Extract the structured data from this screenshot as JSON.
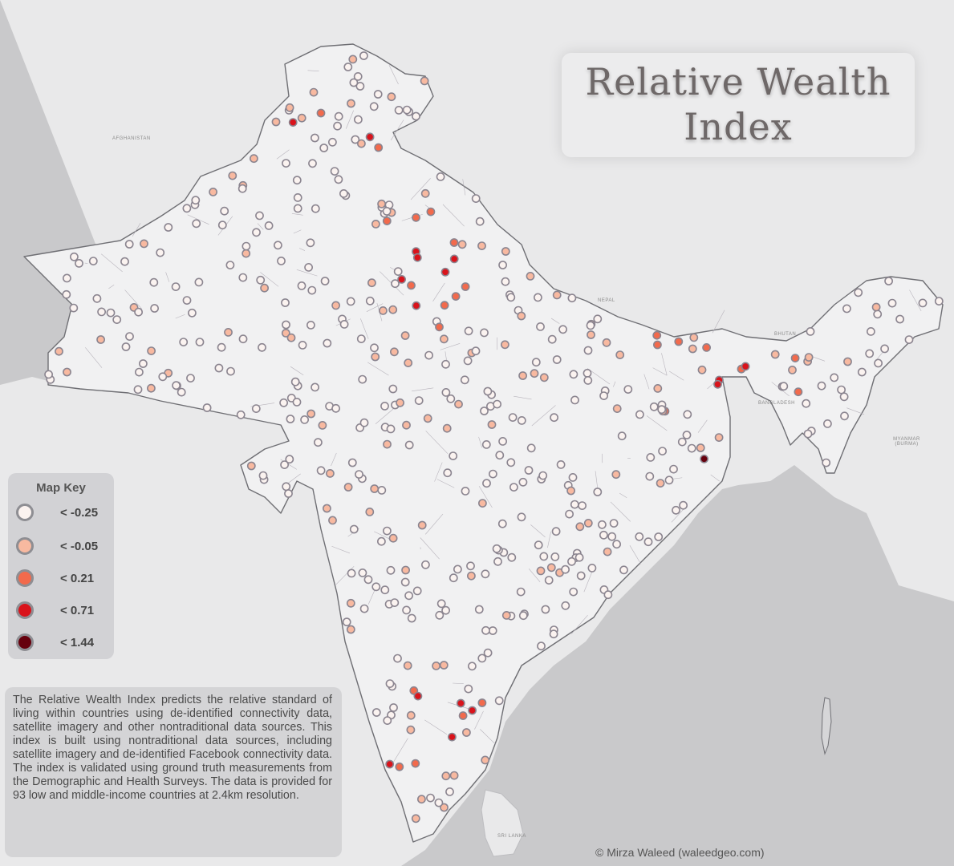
{
  "title": {
    "line1": "Relative Wealth",
    "line2": "Index"
  },
  "legend": {
    "title": "Map Key",
    "items": [
      {
        "label": "< -0.25",
        "color": "#fbf3f0"
      },
      {
        "label": "< -0.05",
        "color": "#f8b9a0"
      },
      {
        "label": "< 0.21",
        "color": "#f26a4c"
      },
      {
        "label": "< 0.71",
        "color": "#d9131b"
      },
      {
        "label": "< 1.44",
        "color": "#66000d"
      }
    ]
  },
  "description": "The Relative Wealth Index predicts the relative standard of living within countries using de-identified connectivity data, satellite imagery and other nontraditional data sources. This index is built using nontraditional data sources, including satellite imagery and de-identified Facebook connectivity data. The index is validated using ground truth measurements from the Demographic and Health Surveys. The data is provided for 93 low and middle-income countries at 2.4km resolution.",
  "credit": "© Mirza Waleed (waleedgeo.com)",
  "map_labels": {
    "afghanistan": "AFGHANISTAN",
    "nepal": "NEPAL",
    "bhutan": "BHUTAN",
    "bangladesh": "BANGLADESH",
    "myanmar": "MYANMAR (BURMA)",
    "srilanka": "SRI LANKA"
  },
  "colors": {
    "ocean": "#c9c9cb",
    "land_other": "#e9e9ea",
    "land_focus": "#f1f1f2",
    "border": "#7b7b80"
  }
}
